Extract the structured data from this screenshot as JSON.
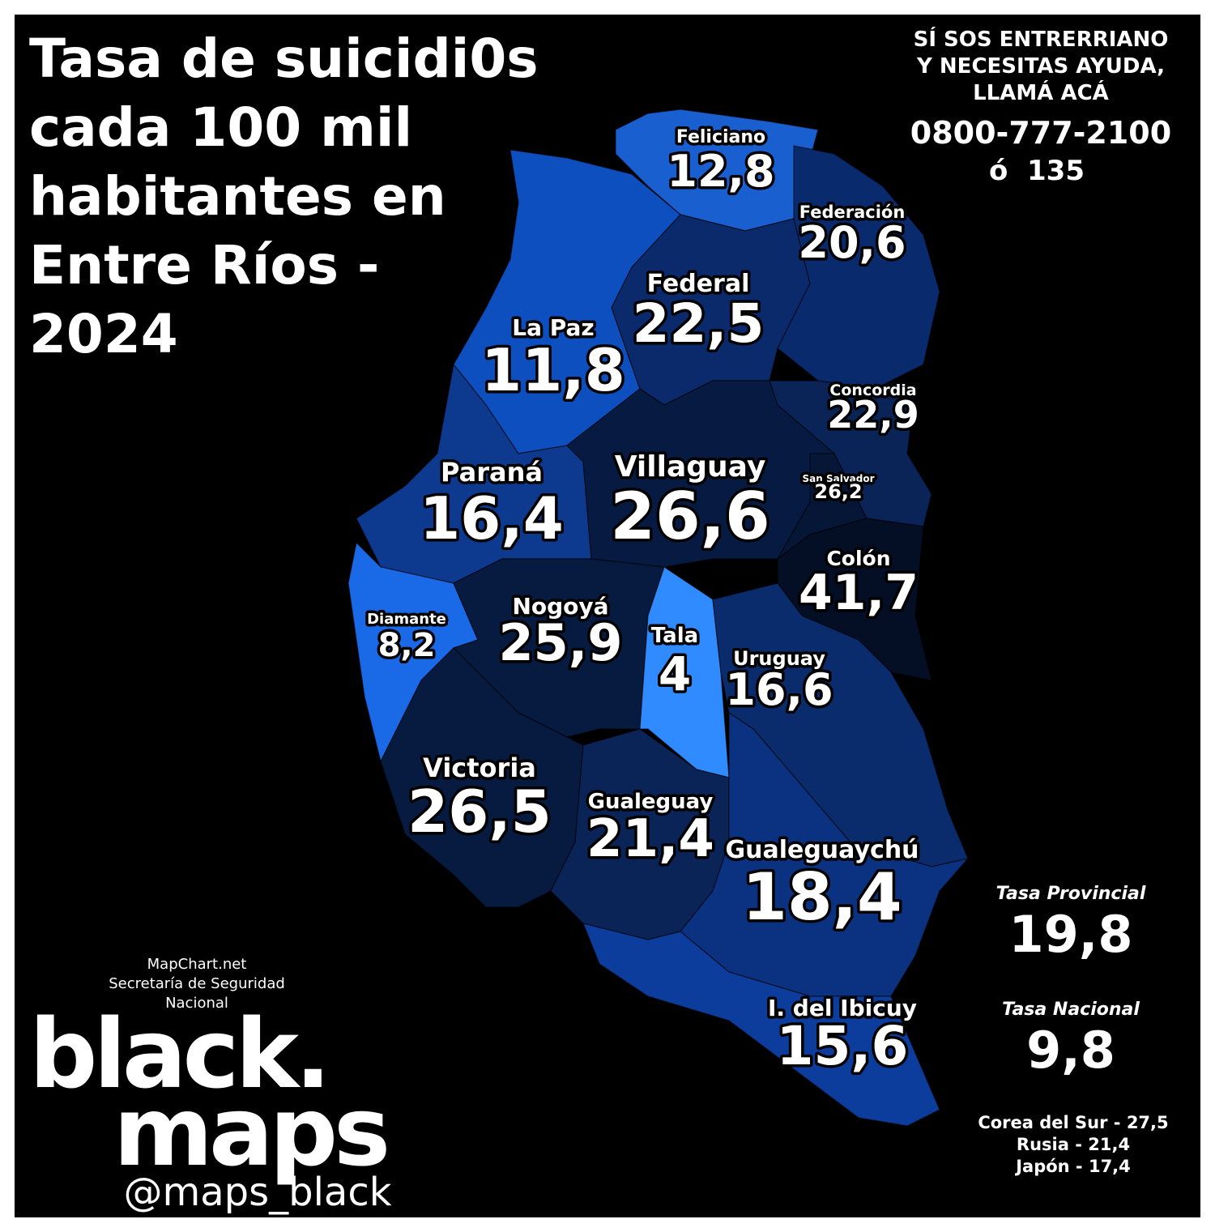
{
  "title": [
    "Tasa de suicidi0s",
    "cada 100 mil",
    "habitantes en",
    "Entre Ríos -",
    "2024"
  ],
  "help": {
    "lines": [
      "SÍ SOS ENTRERRIANO",
      "Y NECESITAS AYUDA,",
      "LLAMÁ ACÁ"
    ],
    "phone": "0800-777-2100",
    "alt": "ó  135"
  },
  "departments": [
    {
      "name": "Feliciano",
      "value": "12,8"
    },
    {
      "name": "Federación",
      "value": "20,6"
    },
    {
      "name": "Federal",
      "value": "22,5"
    },
    {
      "name": "La Paz",
      "value": "11,8"
    },
    {
      "name": "Concordia",
      "value": "22,9"
    },
    {
      "name": "Villaguay",
      "value": "26,6"
    },
    {
      "name": "San Salvador",
      "value": "26,2"
    },
    {
      "name": "Paraná",
      "value": "16,4"
    },
    {
      "name": "Colón",
      "value": "41,7"
    },
    {
      "name": "Diamante",
      "value": "8,2"
    },
    {
      "name": "Nogoyá",
      "value": "25,9"
    },
    {
      "name": "Tala",
      "value": "4"
    },
    {
      "name": "Uruguay",
      "value": "16,6"
    },
    {
      "name": "Victoria",
      "value": "26,5"
    },
    {
      "name": "Gualeguay",
      "value": "21,4"
    },
    {
      "name": "Gualeguaychú",
      "value": "18,4"
    },
    {
      "name": "I. del Ibicuy",
      "value": "15,6"
    }
  ],
  "summary": {
    "provincial_label": "Tasa Provincial",
    "provincial_value": "19,8",
    "national_label": "Tasa Nacional",
    "national_value": "9,8",
    "comparisons": [
      "Corea del Sur - 27,5",
      "Rusia - 21,4",
      "Japón - 17,4"
    ]
  },
  "credits": {
    "sources": [
      "MapChart.net",
      "Secretaría de Seguridad",
      "Nacional"
    ],
    "brand": [
      "black.",
      "maps"
    ],
    "handle": "@maps_black"
  }
}
